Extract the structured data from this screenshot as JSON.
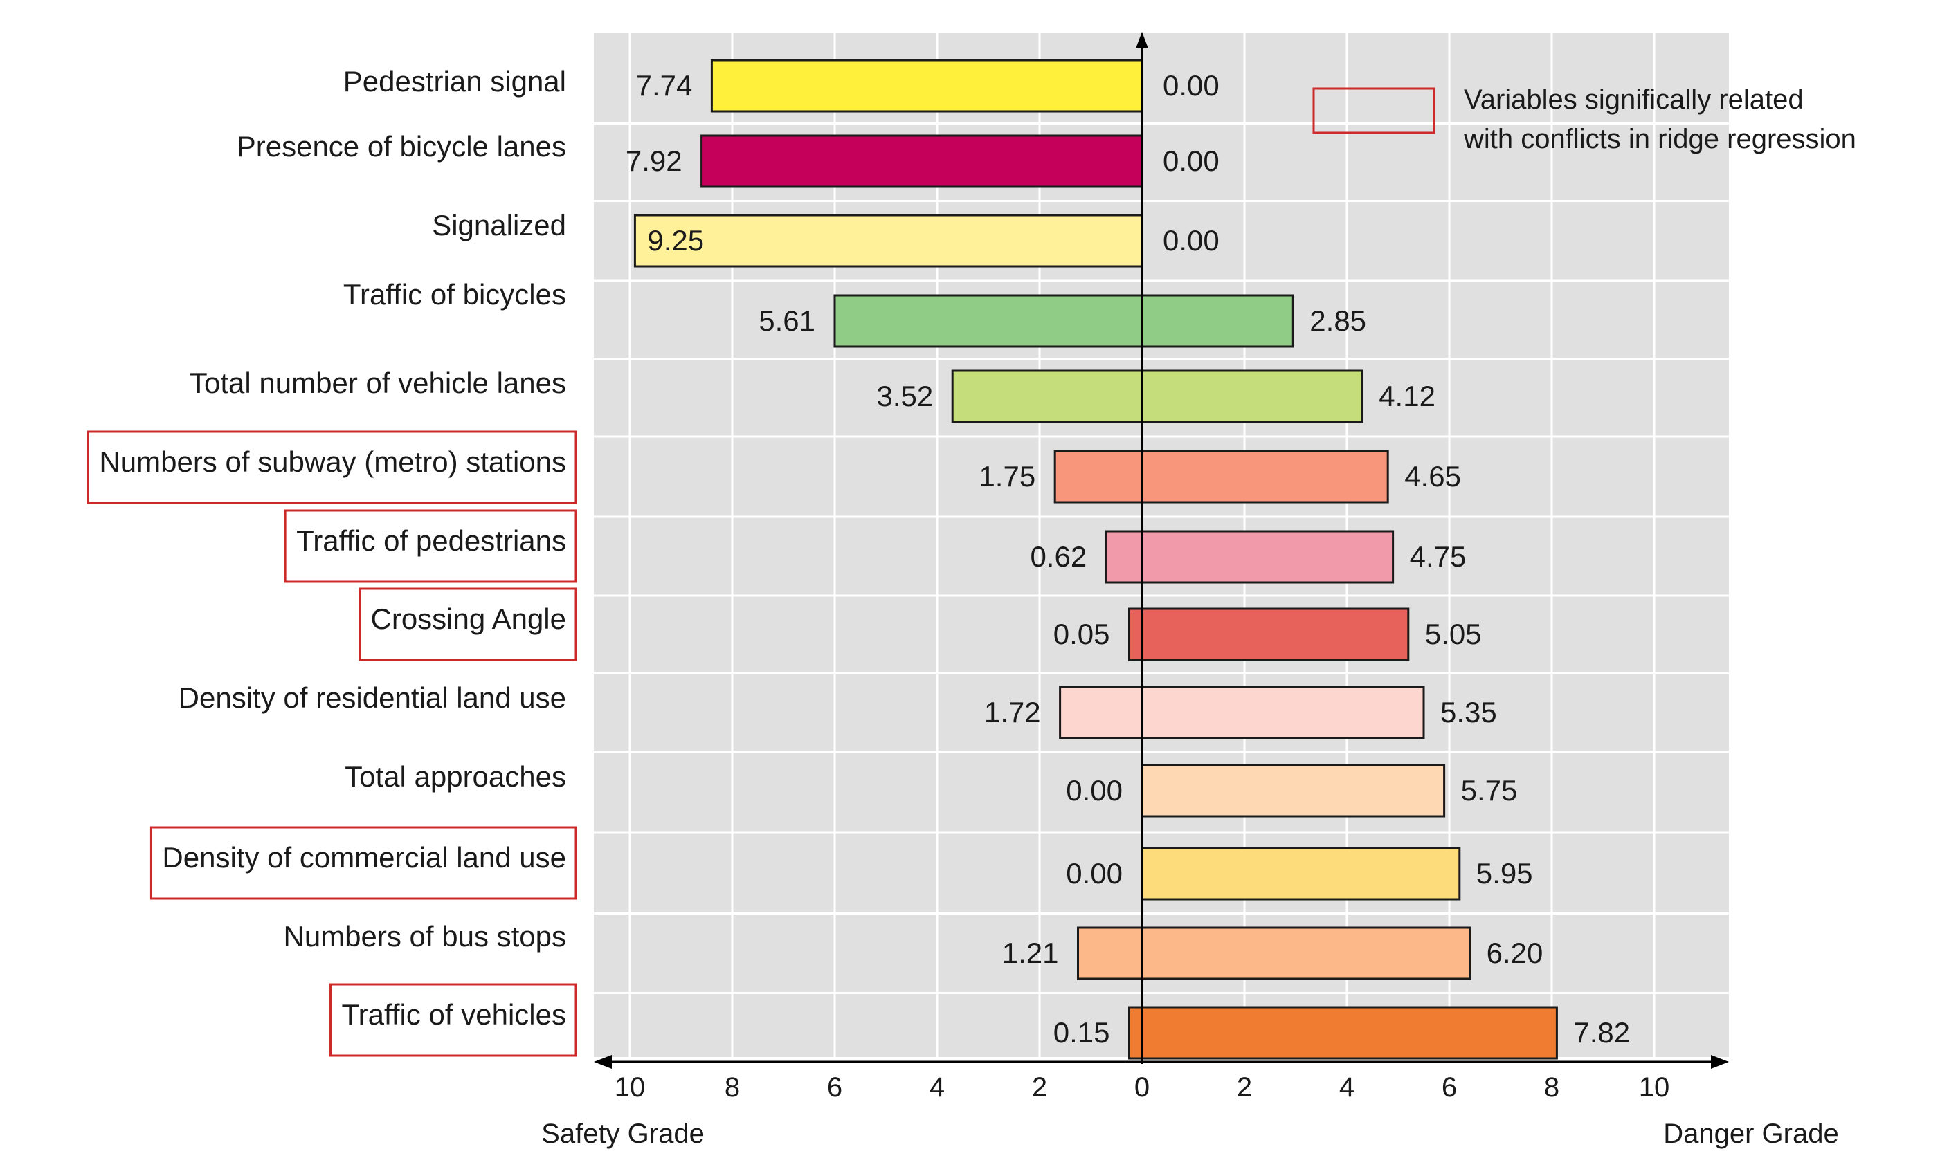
{
  "chart_data": {
    "type": "bar",
    "subtype": "diverging-horizontal",
    "categories": [
      "Pedestrian signal",
      "Presence of bicycle lanes",
      "Signalized",
      "Traffic of bicycles",
      "Total number of vehicle lanes",
      "Numbers of subway (metro) stations",
      "Traffic of pedestrians",
      "Crossing Angle",
      "Density of residential land use",
      "Total approaches",
      "Density of commercial land use",
      "Numbers of bus stops",
      "Traffic of vehicles"
    ],
    "series": [
      {
        "name": "Safety Grade",
        "values": [
          7.74,
          7.92,
          9.25,
          5.61,
          3.52,
          1.75,
          0.62,
          0.05,
          1.72,
          0.0,
          0.0,
          1.21,
          0.15
        ],
        "labels": [
          "7.74",
          "7.92",
          "9.25",
          "5.61",
          "3.52",
          "1.75",
          "0.62",
          "0.05",
          "1.72",
          "0.00",
          "0.00",
          "1.21",
          "0.15"
        ],
        "shown_values": [
          8.4,
          8.6,
          9.9,
          6.0,
          3.7,
          1.7,
          0.7,
          0.25,
          1.6,
          0,
          0,
          1.25,
          0.25
        ]
      },
      {
        "name": "Danger Grade",
        "values": [
          0.0,
          0.0,
          0.0,
          2.85,
          4.12,
          4.65,
          4.75,
          5.05,
          5.35,
          5.75,
          5.95,
          6.2,
          7.82
        ],
        "labels": [
          "0.00",
          "0.00",
          "0.00",
          "2.85",
          "4.12",
          "4.65",
          "4.75",
          "5.05",
          "5.35",
          "5.75",
          "5.95",
          "6.20",
          "7.82"
        ],
        "shown_values": [
          0,
          0,
          0,
          2.95,
          4.3,
          4.8,
          4.9,
          5.2,
          5.5,
          5.9,
          6.2,
          6.4,
          8.1
        ]
      }
    ],
    "bar_colors": [
      "#fff03c",
      "#c4005a",
      "#fff09a",
      "#90cc86",
      "#c6dd7c",
      "#f8967c",
      "#f09aaa",
      "#e6625a",
      "#fdd6d0",
      "#fdd8b2",
      "#fddc7c",
      "#fcb888",
      "#f07c32"
    ],
    "highlighted": [
      false,
      false,
      false,
      false,
      false,
      true,
      true,
      true,
      false,
      false,
      true,
      false,
      true
    ],
    "x_ticks_left": [
      "10",
      "8",
      "6",
      "4",
      "2"
    ],
    "x_ticks_right": [
      "0",
      "2",
      "4",
      "6",
      "8",
      "10"
    ],
    "xlim": [
      -11,
      11
    ],
    "xlabel_left": "Safety Grade",
    "xlabel_right": "Danger Grade",
    "legend": {
      "line1": "Variables significally related",
      "line2": "with conflicts in ridge regression",
      "position": "top-right",
      "swatch_color": "#cc2a2a"
    },
    "grid": true,
    "title": ""
  }
}
